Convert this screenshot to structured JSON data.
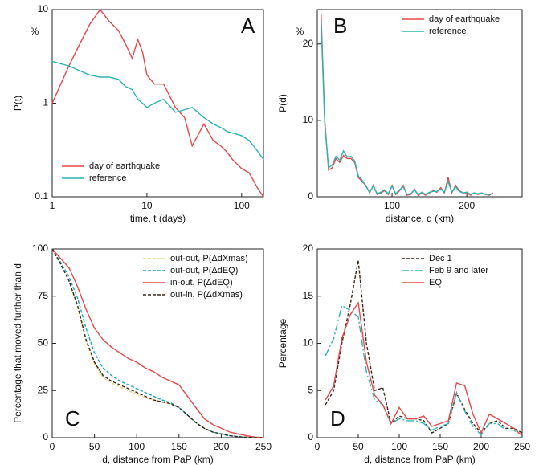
{
  "chart_data": [
    {
      "type": "line",
      "panel": "A",
      "unit": "%",
      "ylabel": "P(t)",
      "xlabel": "time, t (days)",
      "xlog": true,
      "ylog": true,
      "xlim": [
        1,
        170
      ],
      "ylim": [
        0.1,
        10
      ],
      "xticks": [
        1,
        10,
        100
      ],
      "yticks": [
        0.1,
        1,
        10
      ],
      "legend": "lower left",
      "x": [
        1,
        1.5,
        2,
        2.5,
        3.2,
        4,
        5,
        6,
        7,
        8,
        9,
        10,
        12,
        15,
        20,
        25,
        30,
        40,
        50,
        60,
        70,
        80,
        100,
        120,
        150,
        170
      ],
      "series": [
        {
          "name": "day of earthquake",
          "color": "#e8474c",
          "style": "solid",
          "values": [
            1,
            2.5,
            4.5,
            7,
            10,
            7.5,
            6,
            4.2,
            3,
            4.8,
            3.5,
            2,
            1.6,
            1.6,
            0.9,
            0.7,
            0.35,
            0.6,
            0.4,
            0.35,
            0.3,
            0.25,
            0.2,
            0.18,
            0.12,
            0.1
          ]
        },
        {
          "name": "reference",
          "color": "#2bb5b0",
          "style": "solid",
          "values": [
            2.8,
            2.5,
            2.2,
            2.0,
            1.9,
            1.9,
            1.8,
            1.5,
            1.4,
            1.1,
            1.0,
            0.9,
            1.0,
            1.1,
            0.8,
            0.85,
            0.9,
            0.7,
            0.6,
            0.55,
            0.5,
            0.48,
            0.45,
            0.4,
            0.3,
            0.25
          ]
        }
      ]
    },
    {
      "type": "line",
      "panel": "B",
      "unit": "%",
      "ylabel": "P(d)",
      "xlabel": "distance, d (km)",
      "xlim": [
        0,
        274
      ],
      "ylim": [
        0,
        24.5
      ],
      "xticks": [
        100,
        200
      ],
      "yticks": [
        0,
        10,
        20
      ],
      "legend": "upper right",
      "x": [
        5,
        10,
        15,
        20,
        25,
        30,
        35,
        40,
        45,
        50,
        55,
        60,
        65,
        70,
        75,
        80,
        85,
        90,
        95,
        100,
        105,
        110,
        115,
        120,
        125,
        130,
        135,
        140,
        145,
        150,
        155,
        160,
        165,
        170,
        175,
        180,
        185,
        190,
        195,
        200,
        205,
        210,
        215,
        220,
        225,
        230,
        235
      ],
      "series": [
        {
          "name": "day of earthquake",
          "color": "#e8474c",
          "style": "solid",
          "values": [
            24,
            10,
            3.5,
            3.8,
            5,
            4.5,
            5.4,
            5,
            5,
            4.5,
            2.5,
            2,
            1.5,
            0.5,
            1.5,
            0.3,
            0.5,
            0.8,
            0.3,
            1.5,
            0.3,
            0.8,
            1.5,
            0.2,
            0.3,
            1.0,
            0.2,
            0.5,
            0.2,
            0.5,
            0.8,
            0.6,
            1.2,
            0.5,
            2.5,
            0.5,
            1.5,
            0.8,
            0.5,
            0.5,
            0.2,
            0.5,
            0.3,
            0.5,
            0.3,
            0.2,
            0.5
          ]
        },
        {
          "name": "reference",
          "color": "#2bb5b0",
          "style": "solid",
          "values": [
            23,
            9.5,
            3.8,
            4.2,
            5.3,
            4.8,
            6,
            5.2,
            5.3,
            4.7,
            2.7,
            2.2,
            1.4,
            0.6,
            1.4,
            0.4,
            0.6,
            0.9,
            0.4,
            1.4,
            0.4,
            0.9,
            1.3,
            0.3,
            0.4,
            0.9,
            0.3,
            0.6,
            0.3,
            0.6,
            0.7,
            0.7,
            1.0,
            0.6,
            2.0,
            0.6,
            1.3,
            0.7,
            0.5,
            0.6,
            0.3,
            0.5,
            0.4,
            0.5,
            0.3,
            0.3,
            0.4
          ]
        }
      ]
    },
    {
      "type": "line",
      "panel": "C",
      "ylabel": "Percentage that moved further than d",
      "xlabel": "d, distance from PaP (km)",
      "xlim": [
        0,
        250
      ],
      "ylim": [
        0,
        100
      ],
      "xticks": [
        0,
        50,
        100,
        150,
        200,
        250
      ],
      "yticks": [
        0,
        25,
        50,
        75,
        100
      ],
      "legend": "upper right",
      "x": [
        0,
        10,
        20,
        30,
        40,
        50,
        60,
        70,
        80,
        90,
        100,
        110,
        120,
        130,
        140,
        150,
        160,
        170,
        180,
        190,
        200,
        210,
        220,
        230,
        240,
        250
      ],
      "series": [
        {
          "name": "out-out, P(ΔdXmas)",
          "color": "#e6d98a",
          "style": "dashed",
          "values": [
            100,
            92,
            83,
            69,
            51,
            39,
            32,
            29,
            27,
            25,
            23,
            21,
            20,
            19,
            18,
            16,
            12,
            8,
            5,
            3,
            2,
            1,
            0.5,
            0.2,
            0,
            0
          ]
        },
        {
          "name": "out-out, P(ΔdEQ)",
          "color": "#1aa7b8",
          "style": "dashed",
          "values": [
            100,
            93,
            85,
            74,
            58,
            45,
            37,
            33,
            30,
            28,
            26,
            24,
            22,
            20,
            18.5,
            16,
            12,
            8,
            5,
            3,
            2,
            1,
            0.5,
            0.2,
            0,
            0
          ]
        },
        {
          "name": "in-out, P(ΔdEQ)",
          "color": "#e8474c",
          "style": "solid",
          "values": [
            100,
            95,
            90,
            80,
            68,
            58,
            52,
            48,
            45,
            42,
            40,
            37,
            35,
            32,
            30,
            28,
            22,
            16,
            10,
            7,
            5,
            3,
            2,
            1,
            0.3,
            0
          ]
        },
        {
          "name": "out-in, P(ΔdXmas)",
          "color": "#3a2a1a",
          "style": "dashed",
          "values": [
            100,
            92,
            83,
            70,
            52,
            40,
            33,
            30,
            28,
            26,
            24,
            22,
            20,
            19,
            18,
            16,
            12,
            8,
            5,
            3,
            2,
            1,
            0.5,
            0.2,
            0,
            0
          ]
        }
      ]
    },
    {
      "type": "line",
      "panel": "D",
      "ylabel": "Percentage",
      "xlabel": "d, distance from PaP (km)",
      "xlim": [
        0,
        250
      ],
      "ylim": [
        0,
        20
      ],
      "xticks": [
        0,
        50,
        100,
        150,
        200,
        250
      ],
      "yticks": [
        0,
        5,
        10,
        15,
        20
      ],
      "legend": "upper right",
      "x": [
        10,
        20,
        30,
        40,
        50,
        60,
        70,
        80,
        90,
        100,
        110,
        120,
        130,
        140,
        150,
        160,
        170,
        180,
        190,
        200,
        210,
        220,
        230,
        240,
        250
      ],
      "series": [
        {
          "name": "Dec 1",
          "color": "#3a2a1a",
          "style": "dashed",
          "values": [
            3.5,
            5,
            10,
            14,
            18.8,
            10,
            5,
            5.3,
            1.5,
            2.3,
            2,
            2,
            1.8,
            0.5,
            1,
            1.5,
            4.7,
            3,
            1.5,
            0.5,
            1.5,
            1.8,
            1,
            1,
            0.5
          ]
        },
        {
          "name": "Feb 9 and later",
          "color": "#2bb5b0",
          "style": "dashdot",
          "values": [
            8.7,
            10.5,
            14,
            13.5,
            12.8,
            7,
            4,
            3.5,
            1.5,
            2,
            1.8,
            1.8,
            1.5,
            0.8,
            1.2,
            1.5,
            4.8,
            2.8,
            1.2,
            0.3,
            1.5,
            1.5,
            0.8,
            0.8,
            0
          ]
        },
        {
          "name": "EQ",
          "color": "#e8474c",
          "style": "solid",
          "values": [
            4,
            5.5,
            10.5,
            13,
            14.3,
            8,
            4.5,
            3.5,
            1.5,
            3.2,
            2,
            2,
            2.3,
            1.2,
            1.5,
            1.8,
            5.8,
            5.5,
            2.5,
            0.5,
            2.5,
            2,
            1.5,
            1,
            0.2
          ]
        }
      ]
    }
  ]
}
